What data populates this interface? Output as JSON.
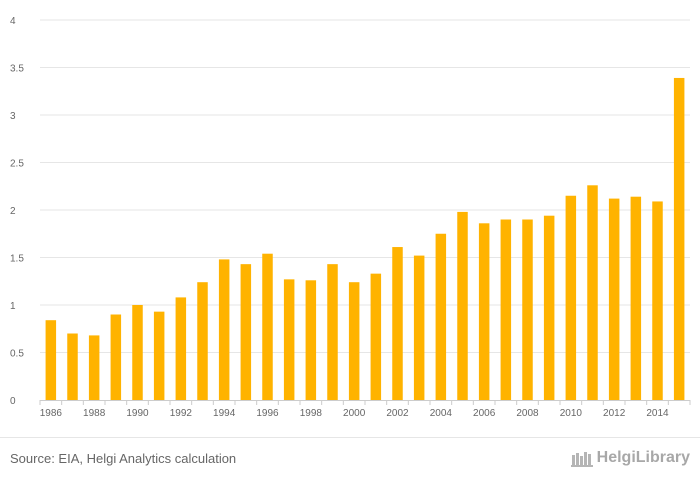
{
  "chart_data": {
    "type": "bar",
    "title": "",
    "xlabel": "",
    "ylabel": "",
    "ylim": [
      0,
      4
    ],
    "yticks": [
      0,
      0.5,
      1,
      1.5,
      2,
      2.5,
      3,
      3.5,
      4
    ],
    "ytick_labels": [
      "0",
      "0.5",
      "1",
      "1.5",
      "2",
      "2.5",
      "3",
      "3.5",
      "4"
    ],
    "categories": [
      "1986",
      "1987",
      "1988",
      "1989",
      "1990",
      "1991",
      "1992",
      "1993",
      "1994",
      "1995",
      "1996",
      "1997",
      "1998",
      "1999",
      "2000",
      "2001",
      "2002",
      "2003",
      "2004",
      "2005",
      "2006",
      "2007",
      "2008",
      "2009",
      "2010",
      "2011",
      "2012",
      "2013",
      "2014",
      "2015"
    ],
    "xtick_labels": [
      "1986",
      "1988",
      "1990",
      "1992",
      "1994",
      "1996",
      "1998",
      "2000",
      "2002",
      "2004",
      "2006",
      "2008",
      "2010",
      "2012",
      "2014"
    ],
    "values": [
      0.84,
      0.7,
      0.68,
      0.9,
      1.0,
      0.93,
      1.08,
      1.24,
      1.48,
      1.43,
      1.54,
      1.27,
      1.26,
      1.43,
      1.24,
      1.33,
      1.61,
      1.52,
      1.75,
      1.98,
      1.86,
      1.9,
      1.9,
      1.94,
      2.15,
      2.26,
      2.12,
      2.14,
      2.09,
      3.39
    ],
    "bar_color": "#FFB300",
    "grid": true
  },
  "footer": {
    "source": "Source: EIA, Helgi Analytics calculation",
    "brand": "HelgiLibrary"
  }
}
